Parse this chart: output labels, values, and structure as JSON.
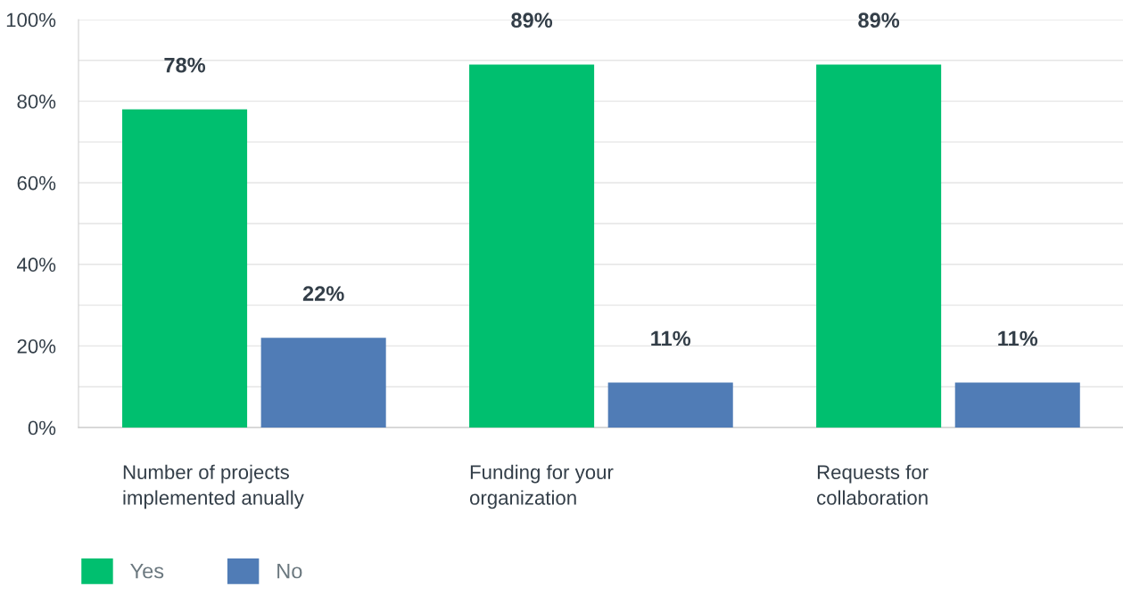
{
  "chart_data": {
    "type": "bar",
    "categories": [
      "Number of projects\nimplemented anually",
      "Funding for your\norganization",
      "Requests for\ncollaboration"
    ],
    "series": [
      {
        "name": "Yes",
        "color": "#00bf6f",
        "values": [
          78,
          89,
          89
        ],
        "value_labels": [
          "78%",
          "89%",
          "89%"
        ]
      },
      {
        "name": "No",
        "color": "#507cb6",
        "values": [
          22,
          11,
          11
        ],
        "value_labels": [
          "22%",
          "11%",
          "11%"
        ]
      }
    ],
    "ylim": [
      0,
      100
    ],
    "yticks": [
      {
        "value": 0,
        "label": "0%"
      },
      {
        "value": 10,
        "label": null
      },
      {
        "value": 20,
        "label": "20%"
      },
      {
        "value": 30,
        "label": null
      },
      {
        "value": 40,
        "label": "40%"
      },
      {
        "value": 50,
        "label": null
      },
      {
        "value": 60,
        "label": "60%"
      },
      {
        "value": 70,
        "label": null
      },
      {
        "value": 80,
        "label": "80%"
      },
      {
        "value": 90,
        "label": null
      },
      {
        "value": 100,
        "label": "100%"
      }
    ],
    "grid": "y",
    "legend": "bottom left"
  }
}
